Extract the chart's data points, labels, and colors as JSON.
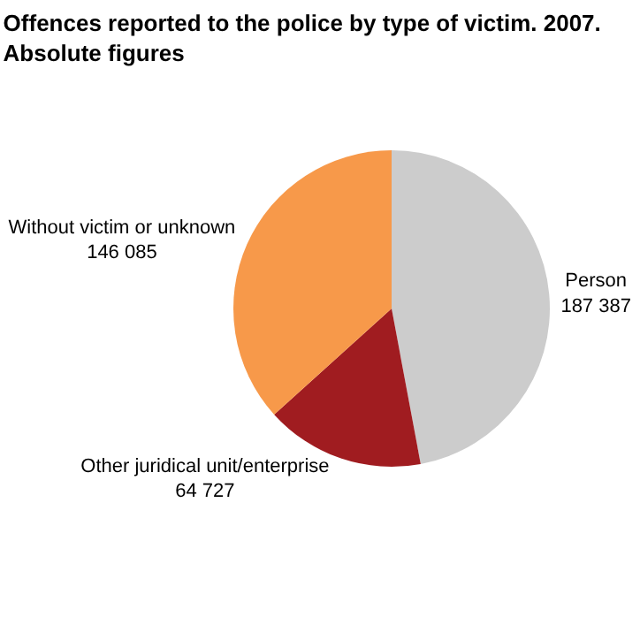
{
  "chart_data": {
    "type": "pie",
    "title": "Offences reported to the police by type of victim. 2007.",
    "subtitle": "Absolute figures",
    "categories": [
      "Person",
      "Other juridical unit/enterprise",
      "Without victim or unknown"
    ],
    "values": [
      187387,
      64727,
      146085
    ],
    "value_labels": [
      "187 387",
      "64 727",
      "146 085"
    ],
    "colors": [
      "#cccccc",
      "#a01c20",
      "#f7994a"
    ],
    "legend": false
  }
}
